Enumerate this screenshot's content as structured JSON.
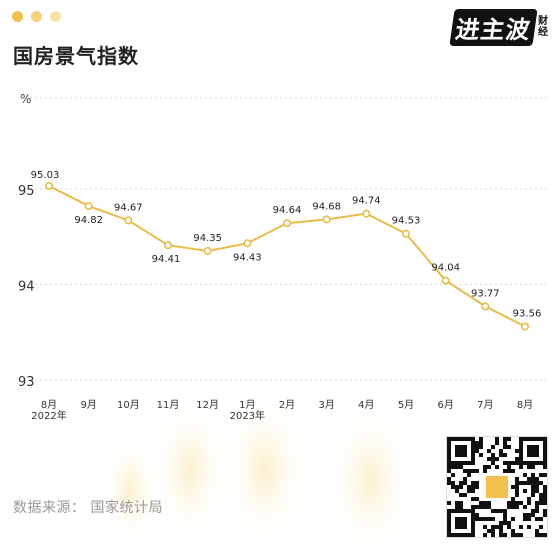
{
  "header": {
    "title": "国房景气指数",
    "dot_colors": [
      "#F2C04C",
      "#F5D27A",
      "#F8E2A8"
    ]
  },
  "brand": {
    "name_main": "进主波",
    "name_side": [
      "财",
      "经"
    ]
  },
  "footer": {
    "source_label": "数据来源：",
    "source_value": "国家统计局"
  },
  "chart_data": {
    "type": "line",
    "title": "国房景气指数",
    "ylabel": "%",
    "ylim": [
      93,
      95.95
    ],
    "yticks": [
      95,
      94,
      93
    ],
    "grid": true,
    "color": "#E8BC4A",
    "categories": [
      "8月",
      "9月",
      "10月",
      "11月",
      "12月",
      "1月",
      "2月",
      "3月",
      "4月",
      "5月",
      "6月",
      "7月",
      "8月"
    ],
    "year_labels": [
      "2022年",
      "",
      "",
      "",
      "",
      "2023年",
      "",
      "",
      "",
      "",
      "",
      "",
      ""
    ],
    "series": [
      {
        "values": [
          95.03,
          94.82,
          94.67,
          94.41,
          94.35,
          94.43,
          94.64,
          94.68,
          94.74,
          94.53,
          94.04,
          93.77,
          93.56
        ]
      }
    ]
  }
}
